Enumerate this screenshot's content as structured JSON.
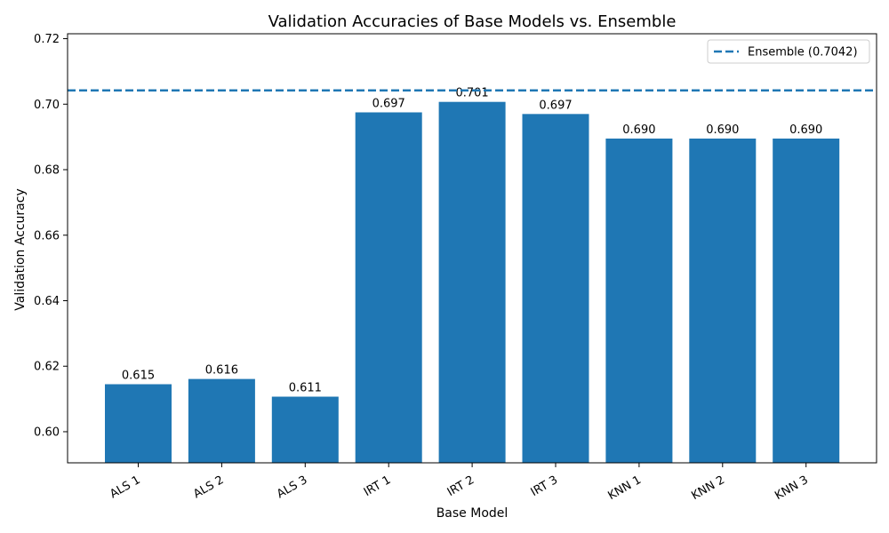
{
  "chart_data": {
    "type": "bar",
    "title": "Validation Accuracies of Base Models vs. Ensemble",
    "xlabel": "Base Model",
    "ylabel": "Validation Accuracy",
    "categories": [
      "ALS 1",
      "ALS 2",
      "ALS 3",
      "IRT 1",
      "IRT 2",
      "IRT 3",
      "KNN 1",
      "KNN 2",
      "KNN 3"
    ],
    "values": [
      0.6145,
      0.6161,
      0.6107,
      0.6975,
      0.7007,
      0.697,
      0.6895,
      0.6895,
      0.6895
    ],
    "value_labels": [
      "0.615",
      "0.616",
      "0.611",
      "0.697",
      "0.701",
      "0.697",
      "0.690",
      "0.690",
      "0.690"
    ],
    "ylim": [
      0.5905,
      0.7215
    ],
    "yticks": [
      0.6,
      0.62,
      0.64,
      0.66,
      0.68,
      0.7,
      0.72
    ],
    "ytick_labels": [
      "0.60",
      "0.62",
      "0.64",
      "0.66",
      "0.68",
      "0.70",
      "0.72"
    ],
    "reference_line": {
      "value": 0.7042,
      "label": "Ensemble (0.7042)",
      "style": "dashed"
    },
    "legend_position": "top-right",
    "grid": false,
    "bar_color": "#1f77b4",
    "line_color": "#1f77b4"
  }
}
